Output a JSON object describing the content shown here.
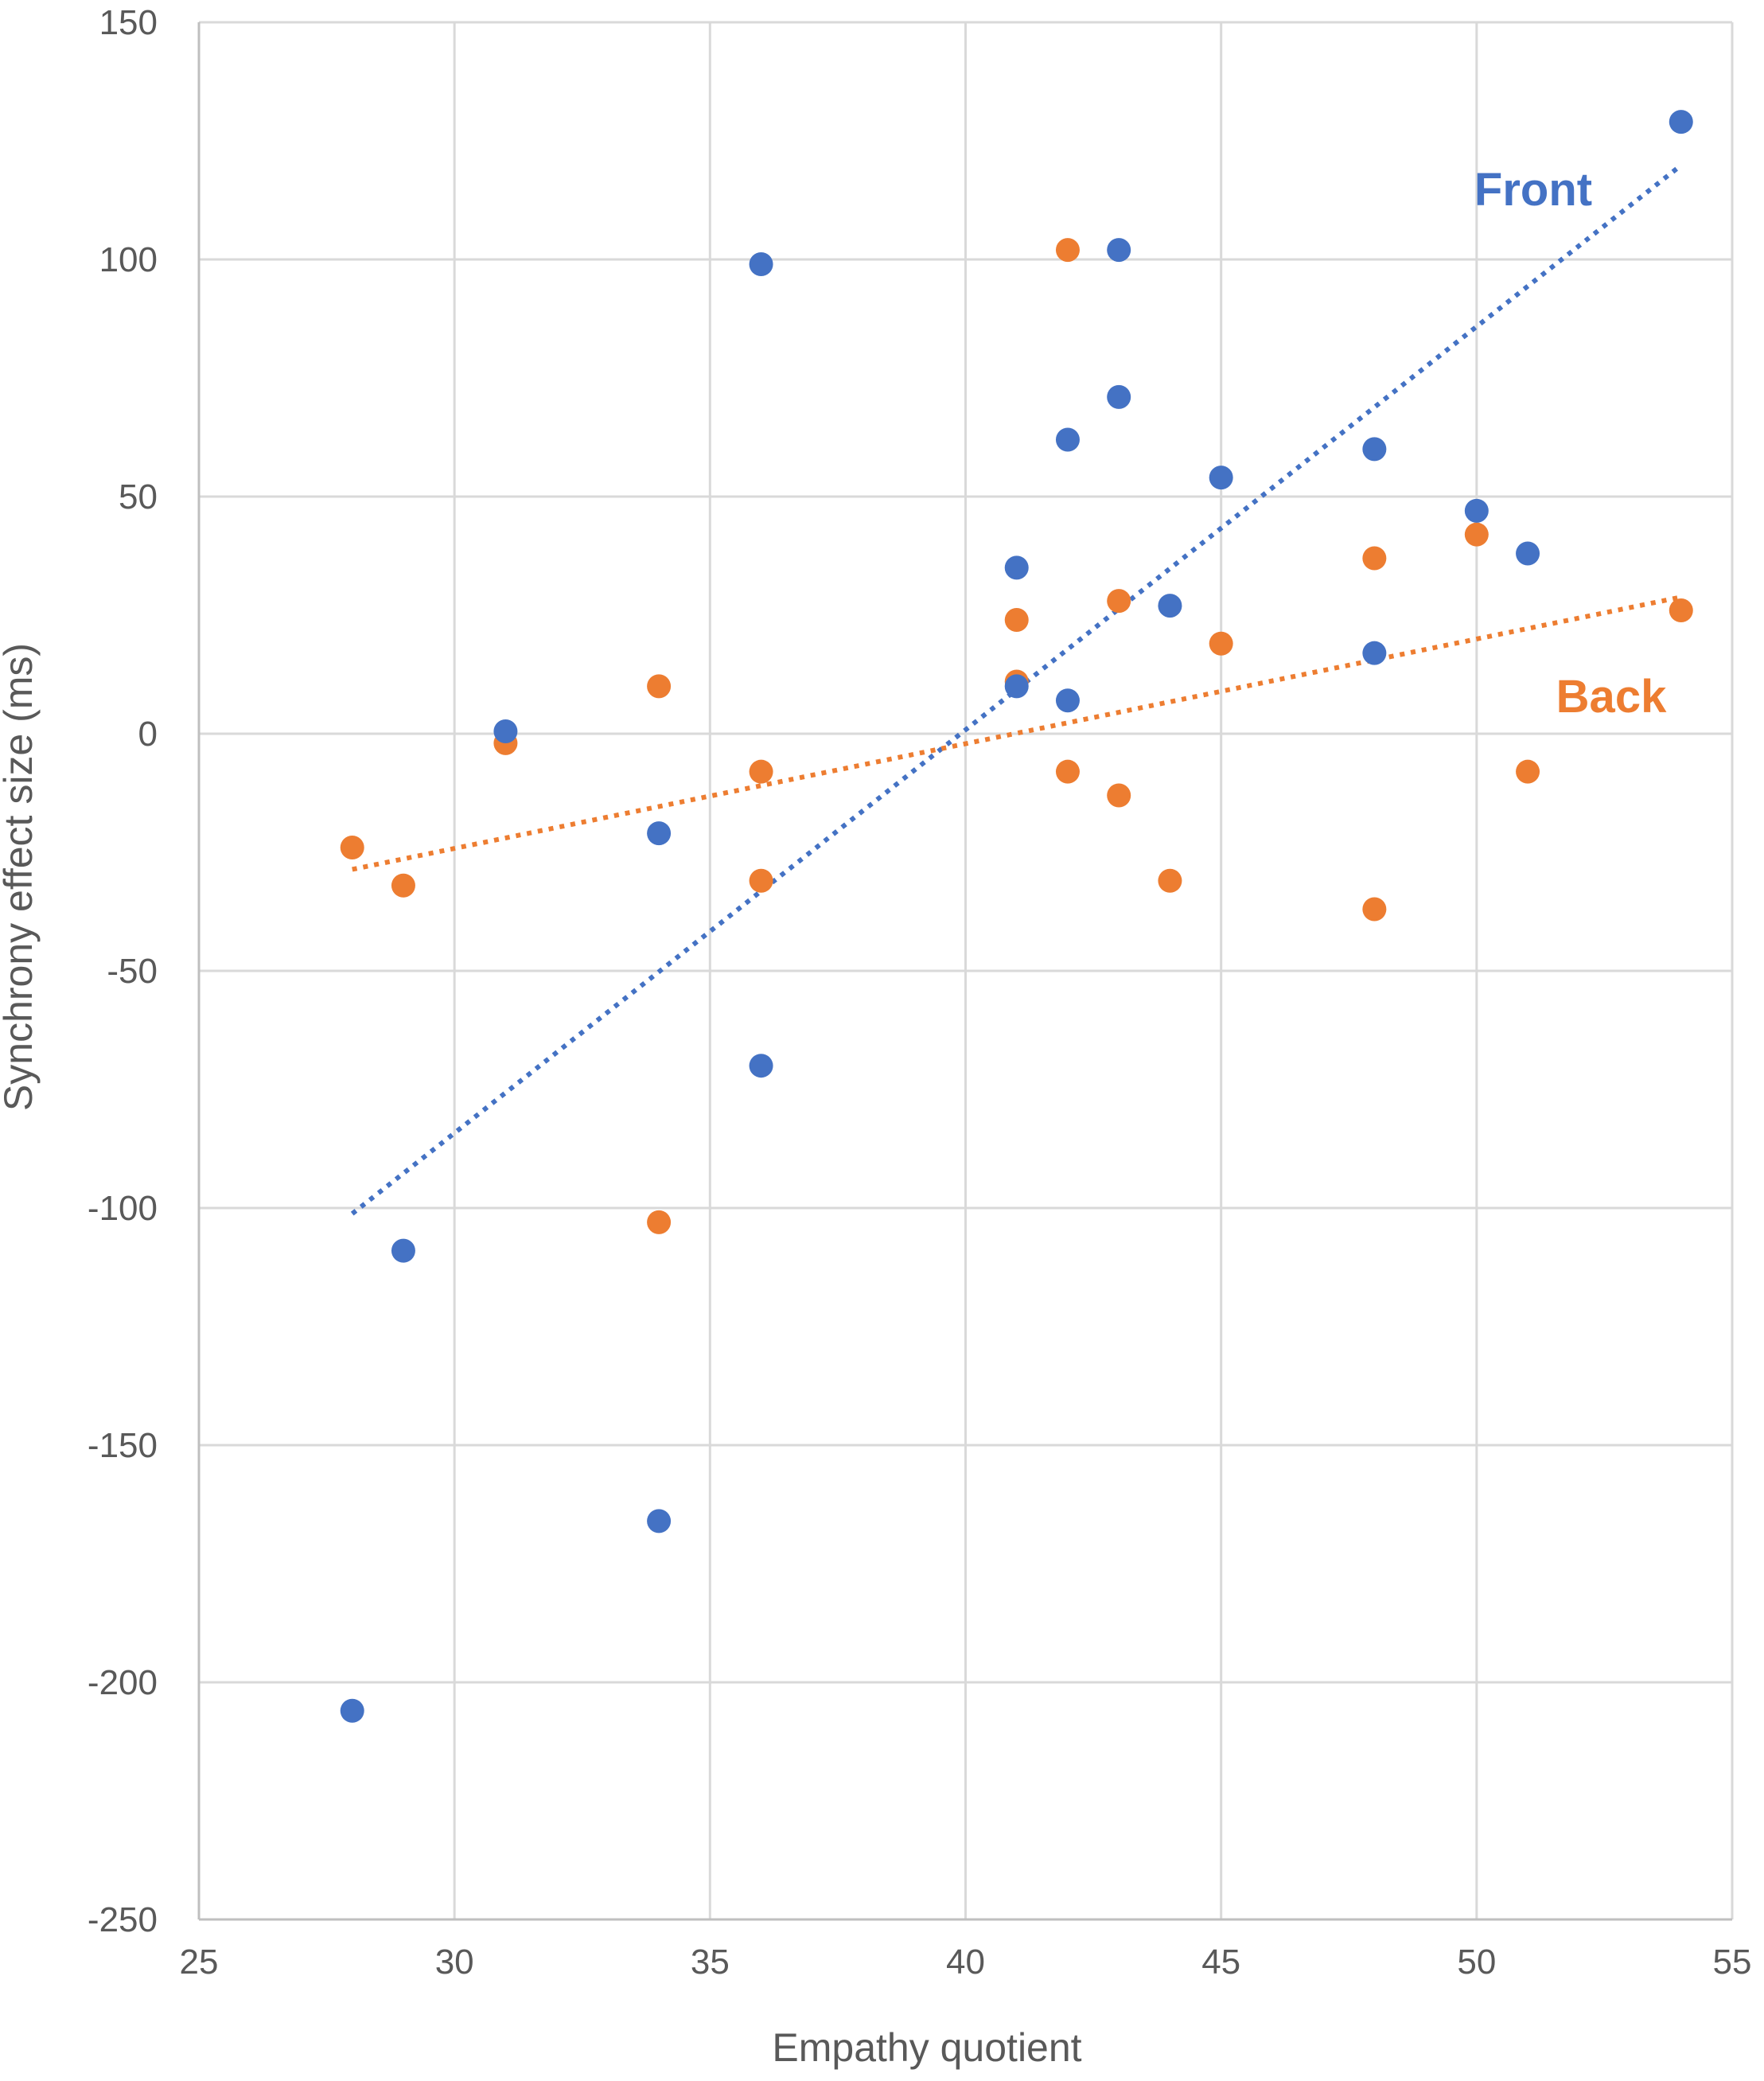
{
  "chart_data": {
    "type": "scatter",
    "title": "",
    "xlabel": "Empathy quotient",
    "ylabel": "Synchrony effect size (ms)",
    "xlim": [
      25,
      55
    ],
    "ylim": [
      -250,
      150
    ],
    "xticks": [
      25,
      30,
      35,
      40,
      45,
      50,
      55
    ],
    "yticks": [
      150,
      100,
      50,
      0,
      -50,
      -100,
      -150,
      -200,
      -250
    ],
    "grid": true,
    "legend": "none",
    "series": [
      {
        "name": "Front",
        "color": "#4472C4",
        "trendline": "linear, dotted",
        "points": [
          [
            28,
            -206
          ],
          [
            29,
            -109
          ],
          [
            31,
            0.5
          ],
          [
            34,
            -21
          ],
          [
            34,
            -166
          ],
          [
            36,
            99
          ],
          [
            36,
            -70
          ],
          [
            41,
            35
          ],
          [
            41,
            10
          ],
          [
            42,
            62
          ],
          [
            42,
            7
          ],
          [
            43,
            102
          ],
          [
            43,
            71
          ],
          [
            44,
            27
          ],
          [
            45,
            54
          ],
          [
            48,
            60
          ],
          [
            48,
            17
          ],
          [
            50,
            47
          ],
          [
            51,
            38
          ],
          [
            54,
            129
          ]
        ]
      },
      {
        "name": "Back",
        "color": "#ED7D31",
        "trendline": "linear, dotted",
        "points": [
          [
            28,
            -24
          ],
          [
            29,
            -32
          ],
          [
            31,
            -2
          ],
          [
            34,
            10
          ],
          [
            34,
            -103
          ],
          [
            36,
            -8
          ],
          [
            36,
            -31
          ],
          [
            41,
            24
          ],
          [
            41,
            11
          ],
          [
            42,
            102
          ],
          [
            42,
            -8
          ],
          [
            43,
            28
          ],
          [
            43,
            -13
          ],
          [
            44,
            -31
          ],
          [
            45,
            19
          ],
          [
            48,
            37
          ],
          [
            48,
            -37
          ],
          [
            50,
            42
          ],
          [
            51,
            -8
          ],
          [
            54,
            26
          ]
        ]
      }
    ]
  }
}
